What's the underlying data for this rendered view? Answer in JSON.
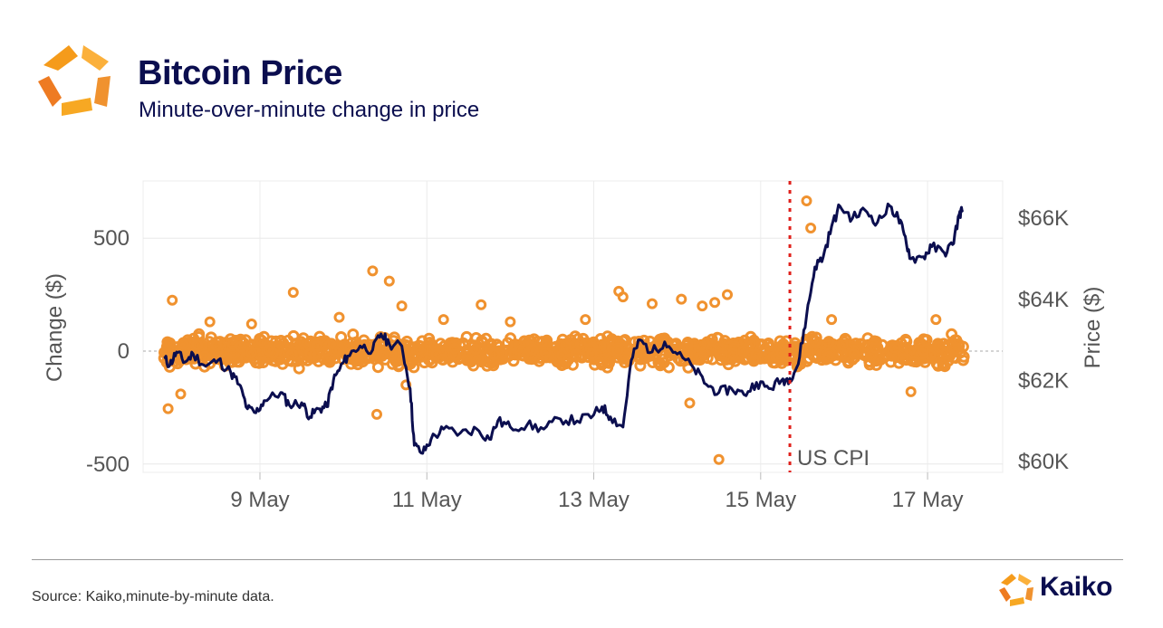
{
  "header": {
    "title": "Bitcoin Price",
    "subtitle": "Minute-over-minute change in price"
  },
  "footer": {
    "source": "Source: Kaiko,minute-by-minute data.",
    "brand": "Kaiko"
  },
  "colors": {
    "navy": "#0b0e4f",
    "orange": "#f0922f",
    "event_line": "#e0201b"
  },
  "chart_data": {
    "type": "scatter",
    "title": "Bitcoin Price",
    "subtitle": "Minute-over-minute change in price",
    "ylabel_left": "Change ($)",
    "ylabel_right": "Price ($)",
    "x_ticks": [
      "9 May",
      "11 May",
      "13 May",
      "15 May",
      "17 May"
    ],
    "y_left_ticks": [
      "500",
      "0",
      "-500"
    ],
    "y_left_tick_values": [
      500,
      0,
      -500
    ],
    "y_right_ticks": [
      "$66K",
      "$64K",
      "$62K",
      "$60K"
    ],
    "y_right_tick_values": [
      66000,
      64000,
      62000,
      60000
    ],
    "ylim_left": [
      -550,
      750
    ],
    "ylim_right": [
      59800,
      67000
    ],
    "xlim_days": [
      7.6,
      17.9
    ],
    "grid": true,
    "zero_line": "dashed",
    "annotation": {
      "label": "US CPI",
      "x_day": 15.35
    },
    "series": [
      {
        "name": "Change ($)",
        "type": "scatter",
        "axis": "left",
        "outliers": [
          [
            7.9,
            -255
          ],
          [
            7.95,
            225
          ],
          [
            8.05,
            -190
          ],
          [
            8.4,
            130
          ],
          [
            8.9,
            120
          ],
          [
            9.4,
            260
          ],
          [
            9.95,
            150
          ],
          [
            10.35,
            355
          ],
          [
            10.4,
            -280
          ],
          [
            10.55,
            310
          ],
          [
            10.7,
            200
          ],
          [
            10.75,
            -150
          ],
          [
            11.2,
            140
          ],
          [
            11.65,
            205
          ],
          [
            12.0,
            130
          ],
          [
            12.9,
            140
          ],
          [
            13.3,
            265
          ],
          [
            13.35,
            240
          ],
          [
            13.7,
            210
          ],
          [
            14.05,
            230
          ],
          [
            14.15,
            -230
          ],
          [
            14.3,
            200
          ],
          [
            14.45,
            215
          ],
          [
            14.5,
            -480
          ],
          [
            14.6,
            250
          ],
          [
            15.55,
            665
          ],
          [
            15.6,
            545
          ],
          [
            15.85,
            140
          ],
          [
            16.8,
            -180
          ],
          [
            17.1,
            140
          ]
        ],
        "dense_band": [
          -85,
          85
        ]
      },
      {
        "name": "Price ($)",
        "type": "line",
        "axis": "right",
        "points": [
          [
            7.85,
            62550
          ],
          [
            7.92,
            62380
          ],
          [
            8.0,
            62700
          ],
          [
            8.1,
            62450
          ],
          [
            8.2,
            62650
          ],
          [
            8.35,
            62350
          ],
          [
            8.5,
            62500
          ],
          [
            8.65,
            62200
          ],
          [
            8.75,
            61900
          ],
          [
            8.85,
            61300
          ],
          [
            8.95,
            61200
          ],
          [
            9.05,
            61500
          ],
          [
            9.25,
            61700
          ],
          [
            9.35,
            61400
          ],
          [
            9.5,
            61450
          ],
          [
            9.6,
            61100
          ],
          [
            9.7,
            61300
          ],
          [
            9.8,
            61350
          ],
          [
            9.88,
            62000
          ],
          [
            9.96,
            62300
          ],
          [
            10.05,
            62600
          ],
          [
            10.2,
            62850
          ],
          [
            10.35,
            62750
          ],
          [
            10.45,
            63150
          ],
          [
            10.55,
            62900
          ],
          [
            10.7,
            62850
          ],
          [
            10.8,
            61800
          ],
          [
            10.85,
            60400
          ],
          [
            10.95,
            60200
          ],
          [
            11.05,
            60550
          ],
          [
            11.2,
            60800
          ],
          [
            11.4,
            60700
          ],
          [
            11.6,
            60800
          ],
          [
            11.75,
            60550
          ],
          [
            11.85,
            61000
          ],
          [
            12.0,
            60850
          ],
          [
            12.2,
            60900
          ],
          [
            12.4,
            60800
          ],
          [
            12.6,
            61050
          ],
          [
            12.8,
            61000
          ],
          [
            13.0,
            61150
          ],
          [
            13.1,
            61350
          ],
          [
            13.2,
            61100
          ],
          [
            13.35,
            60850
          ],
          [
            13.45,
            62500
          ],
          [
            13.55,
            63000
          ],
          [
            13.7,
            62700
          ],
          [
            13.85,
            62950
          ],
          [
            14.0,
            62650
          ],
          [
            14.2,
            62300
          ],
          [
            14.35,
            61900
          ],
          [
            14.5,
            61700
          ],
          [
            14.65,
            61800
          ],
          [
            14.8,
            61650
          ],
          [
            14.95,
            61950
          ],
          [
            15.1,
            61800
          ],
          [
            15.25,
            62000
          ],
          [
            15.35,
            62050
          ],
          [
            15.45,
            62400
          ],
          [
            15.55,
            63600
          ],
          [
            15.65,
            64800
          ],
          [
            15.75,
            65050
          ],
          [
            15.85,
            65800
          ],
          [
            15.95,
            66300
          ],
          [
            16.1,
            66000
          ],
          [
            16.25,
            66200
          ],
          [
            16.4,
            65900
          ],
          [
            16.55,
            66300
          ],
          [
            16.65,
            66000
          ],
          [
            16.72,
            65600
          ],
          [
            16.8,
            65000
          ],
          [
            16.95,
            65050
          ],
          [
            17.05,
            65300
          ],
          [
            17.2,
            65150
          ],
          [
            17.3,
            65350
          ],
          [
            17.38,
            66100
          ],
          [
            17.42,
            66200
          ]
        ]
      }
    ]
  }
}
